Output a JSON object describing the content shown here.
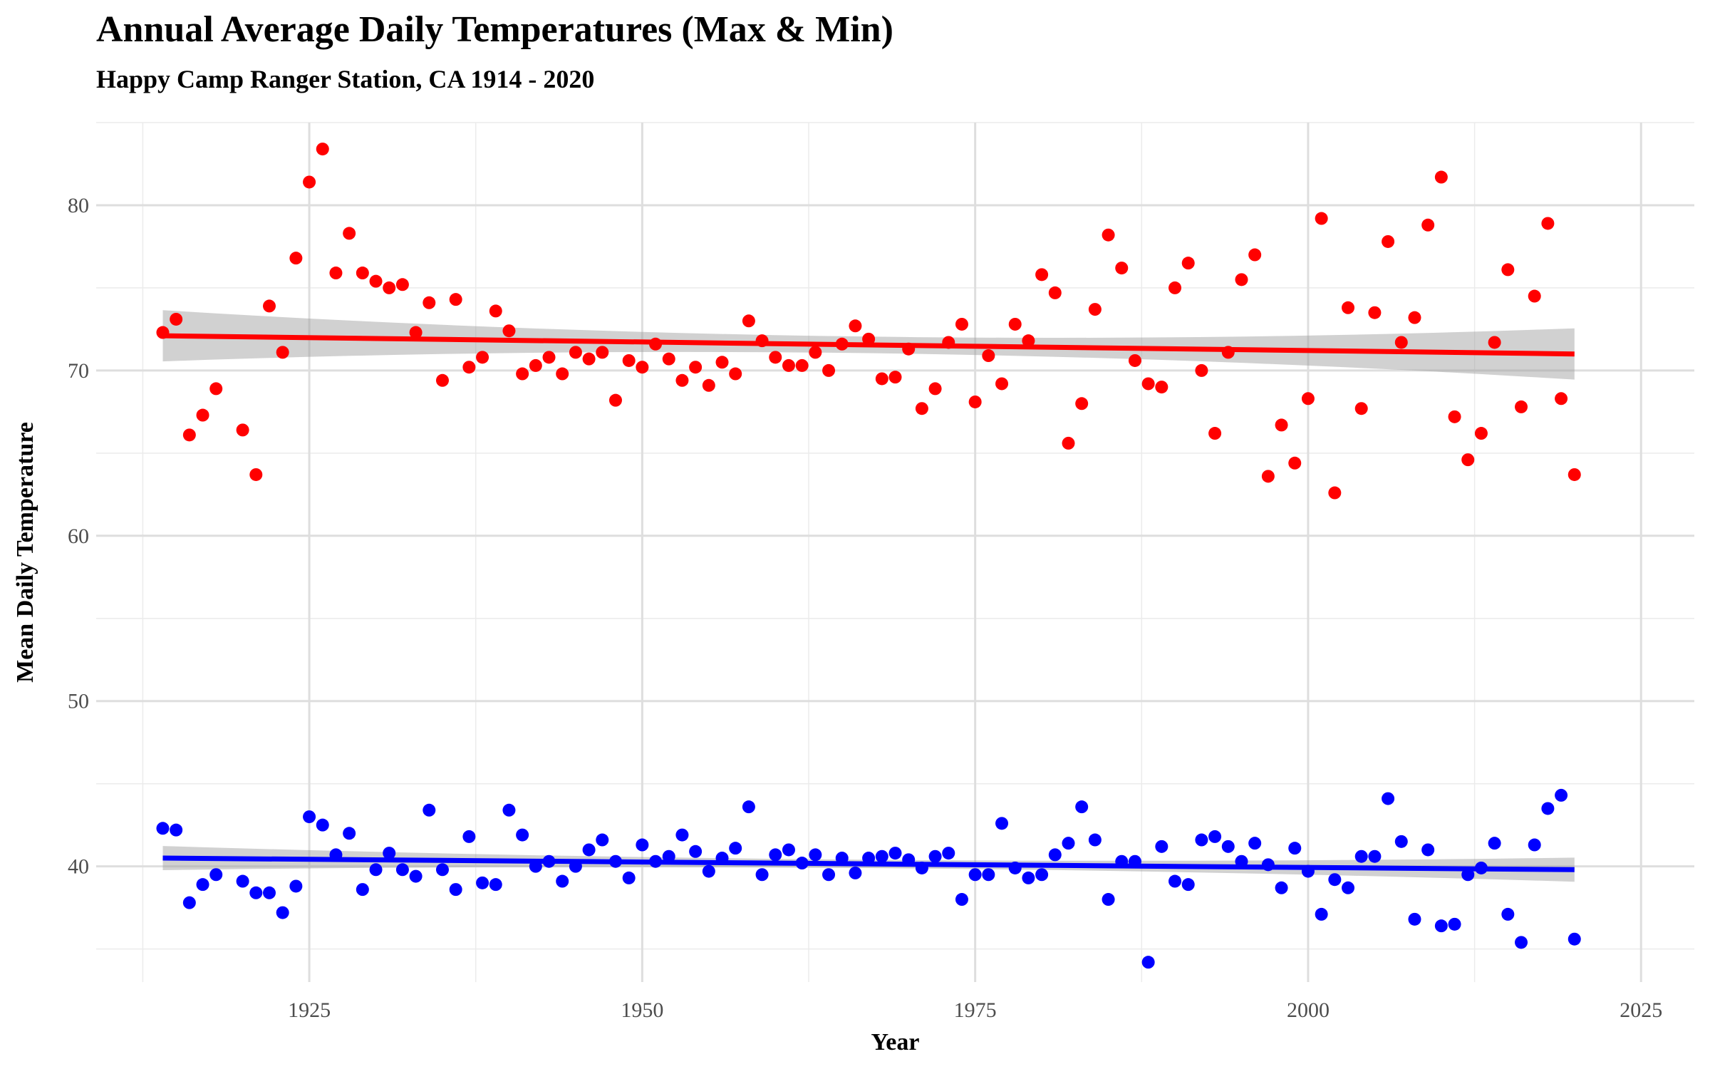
{
  "chart_data": {
    "type": "scatter",
    "title": "Annual Average Daily Temperatures (Max & Min)",
    "subtitle": "Happy Camp Ranger Station, CA 1914 - 2020",
    "xlabel": "Year",
    "ylabel": "Mean Daily Temperature",
    "xlim": [
      1909,
      2029
    ],
    "ylim": [
      33,
      85
    ],
    "x_ticks": [
      1925,
      1950,
      1975,
      2000,
      2025
    ],
    "y_ticks": [
      40,
      50,
      60,
      70,
      80
    ],
    "grid": true,
    "legend": "none",
    "x": [
      1914,
      1915,
      1916,
      1917,
      1918,
      1920,
      1921,
      1922,
      1923,
      1924,
      1925,
      1926,
      1927,
      1928,
      1929,
      1930,
      1931,
      1932,
      1933,
      1934,
      1935,
      1936,
      1937,
      1938,
      1939,
      1940,
      1941,
      1942,
      1943,
      1944,
      1945,
      1946,
      1947,
      1948,
      1949,
      1950,
      1951,
      1952,
      1953,
      1954,
      1955,
      1956,
      1957,
      1958,
      1959,
      1960,
      1961,
      1962,
      1963,
      1964,
      1965,
      1966,
      1967,
      1968,
      1969,
      1970,
      1971,
      1972,
      1973,
      1974,
      1975,
      1976,
      1977,
      1978,
      1979,
      1980,
      1981,
      1982,
      1983,
      1984,
      1985,
      1986,
      1987,
      1988,
      1989,
      1990,
      1991,
      1992,
      1993,
      1994,
      1995,
      1996,
      1997,
      1998,
      1999,
      2000,
      2001,
      2002,
      2003,
      2004,
      2005,
      2006,
      2007,
      2008,
      2009,
      2010,
      2011,
      2012,
      2013,
      2014,
      2015,
      2016,
      2017,
      2018,
      2019,
      2020
    ],
    "series": [
      {
        "color": "#ff0000",
        "values": [
          72.3,
          73.1,
          66.1,
          67.3,
          68.9,
          66.4,
          63.7,
          73.9,
          71.1,
          76.8,
          81.4,
          83.4,
          75.9,
          78.3,
          75.9,
          75.4,
          75.0,
          75.2,
          72.3,
          74.1,
          69.4,
          74.3,
          70.2,
          70.8,
          73.6,
          72.4,
          69.8,
          70.3,
          70.8,
          69.8,
          71.1,
          70.7,
          71.1,
          68.2,
          70.6,
          70.2,
          71.6,
          70.7,
          69.4,
          70.2,
          69.1,
          70.5,
          69.8,
          73.0,
          71.8,
          70.8,
          70.3,
          70.3,
          71.1,
          70.0,
          71.6,
          72.7,
          71.9,
          69.5,
          69.6,
          71.3,
          67.7,
          68.9,
          71.7,
          72.8,
          68.1,
          70.9,
          69.2,
          72.8,
          71.8,
          75.8,
          74.7,
          65.6,
          68.0,
          73.7,
          78.2,
          76.2,
          70.6,
          69.2,
          69.0,
          75.0,
          76.5,
          70.0,
          66.2,
          71.1,
          75.5,
          77.0,
          63.6,
          66.7,
          64.4,
          68.3,
          79.2,
          62.6,
          73.8,
          67.7,
          73.5,
          77.8,
          71.7,
          73.2,
          78.8,
          81.7,
          67.2,
          64.6,
          66.2,
          71.7,
          76.1,
          67.8,
          74.5,
          78.9,
          68.3,
          63.7
        ],
        "trend": [
          72.1,
          71.0
        ]
      },
      {
        "color": "#0000ff",
        "values": [
          42.3,
          42.2,
          37.8,
          38.9,
          39.5,
          39.1,
          38.4,
          38.4,
          37.2,
          38.8,
          43.0,
          42.5,
          40.7,
          42.0,
          38.6,
          39.8,
          40.8,
          39.8,
          39.4,
          43.4,
          39.8,
          38.6,
          41.8,
          39.0,
          38.9,
          43.4,
          41.9,
          40.0,
          40.3,
          39.1,
          40.0,
          41.0,
          41.6,
          40.3,
          39.3,
          41.3,
          40.3,
          40.6,
          41.9,
          40.9,
          39.7,
          40.5,
          41.1,
          43.6,
          39.5,
          40.7,
          41.0,
          40.2,
          40.7,
          39.5,
          40.5,
          39.6,
          40.5,
          40.6,
          40.8,
          40.4,
          39.9,
          40.6,
          40.8,
          38.0,
          39.5,
          39.5,
          42.6,
          39.9,
          39.3,
          39.5,
          40.7,
          41.4,
          43.6,
          41.6,
          38.0,
          40.3,
          40.3,
          34.2,
          41.2,
          39.1,
          38.9,
          41.6,
          41.8,
          41.2,
          40.3,
          41.4,
          40.1,
          38.7,
          41.1,
          39.7,
          37.1,
          39.2,
          38.7,
          40.6,
          40.6,
          44.1,
          41.5,
          36.8,
          41.0,
          36.4,
          36.5,
          39.5,
          39.9,
          41.4,
          37.1,
          35.4,
          41.3,
          43.5,
          44.3,
          35.6
        ],
        "trend": [
          40.5,
          39.8
        ]
      }
    ]
  }
}
